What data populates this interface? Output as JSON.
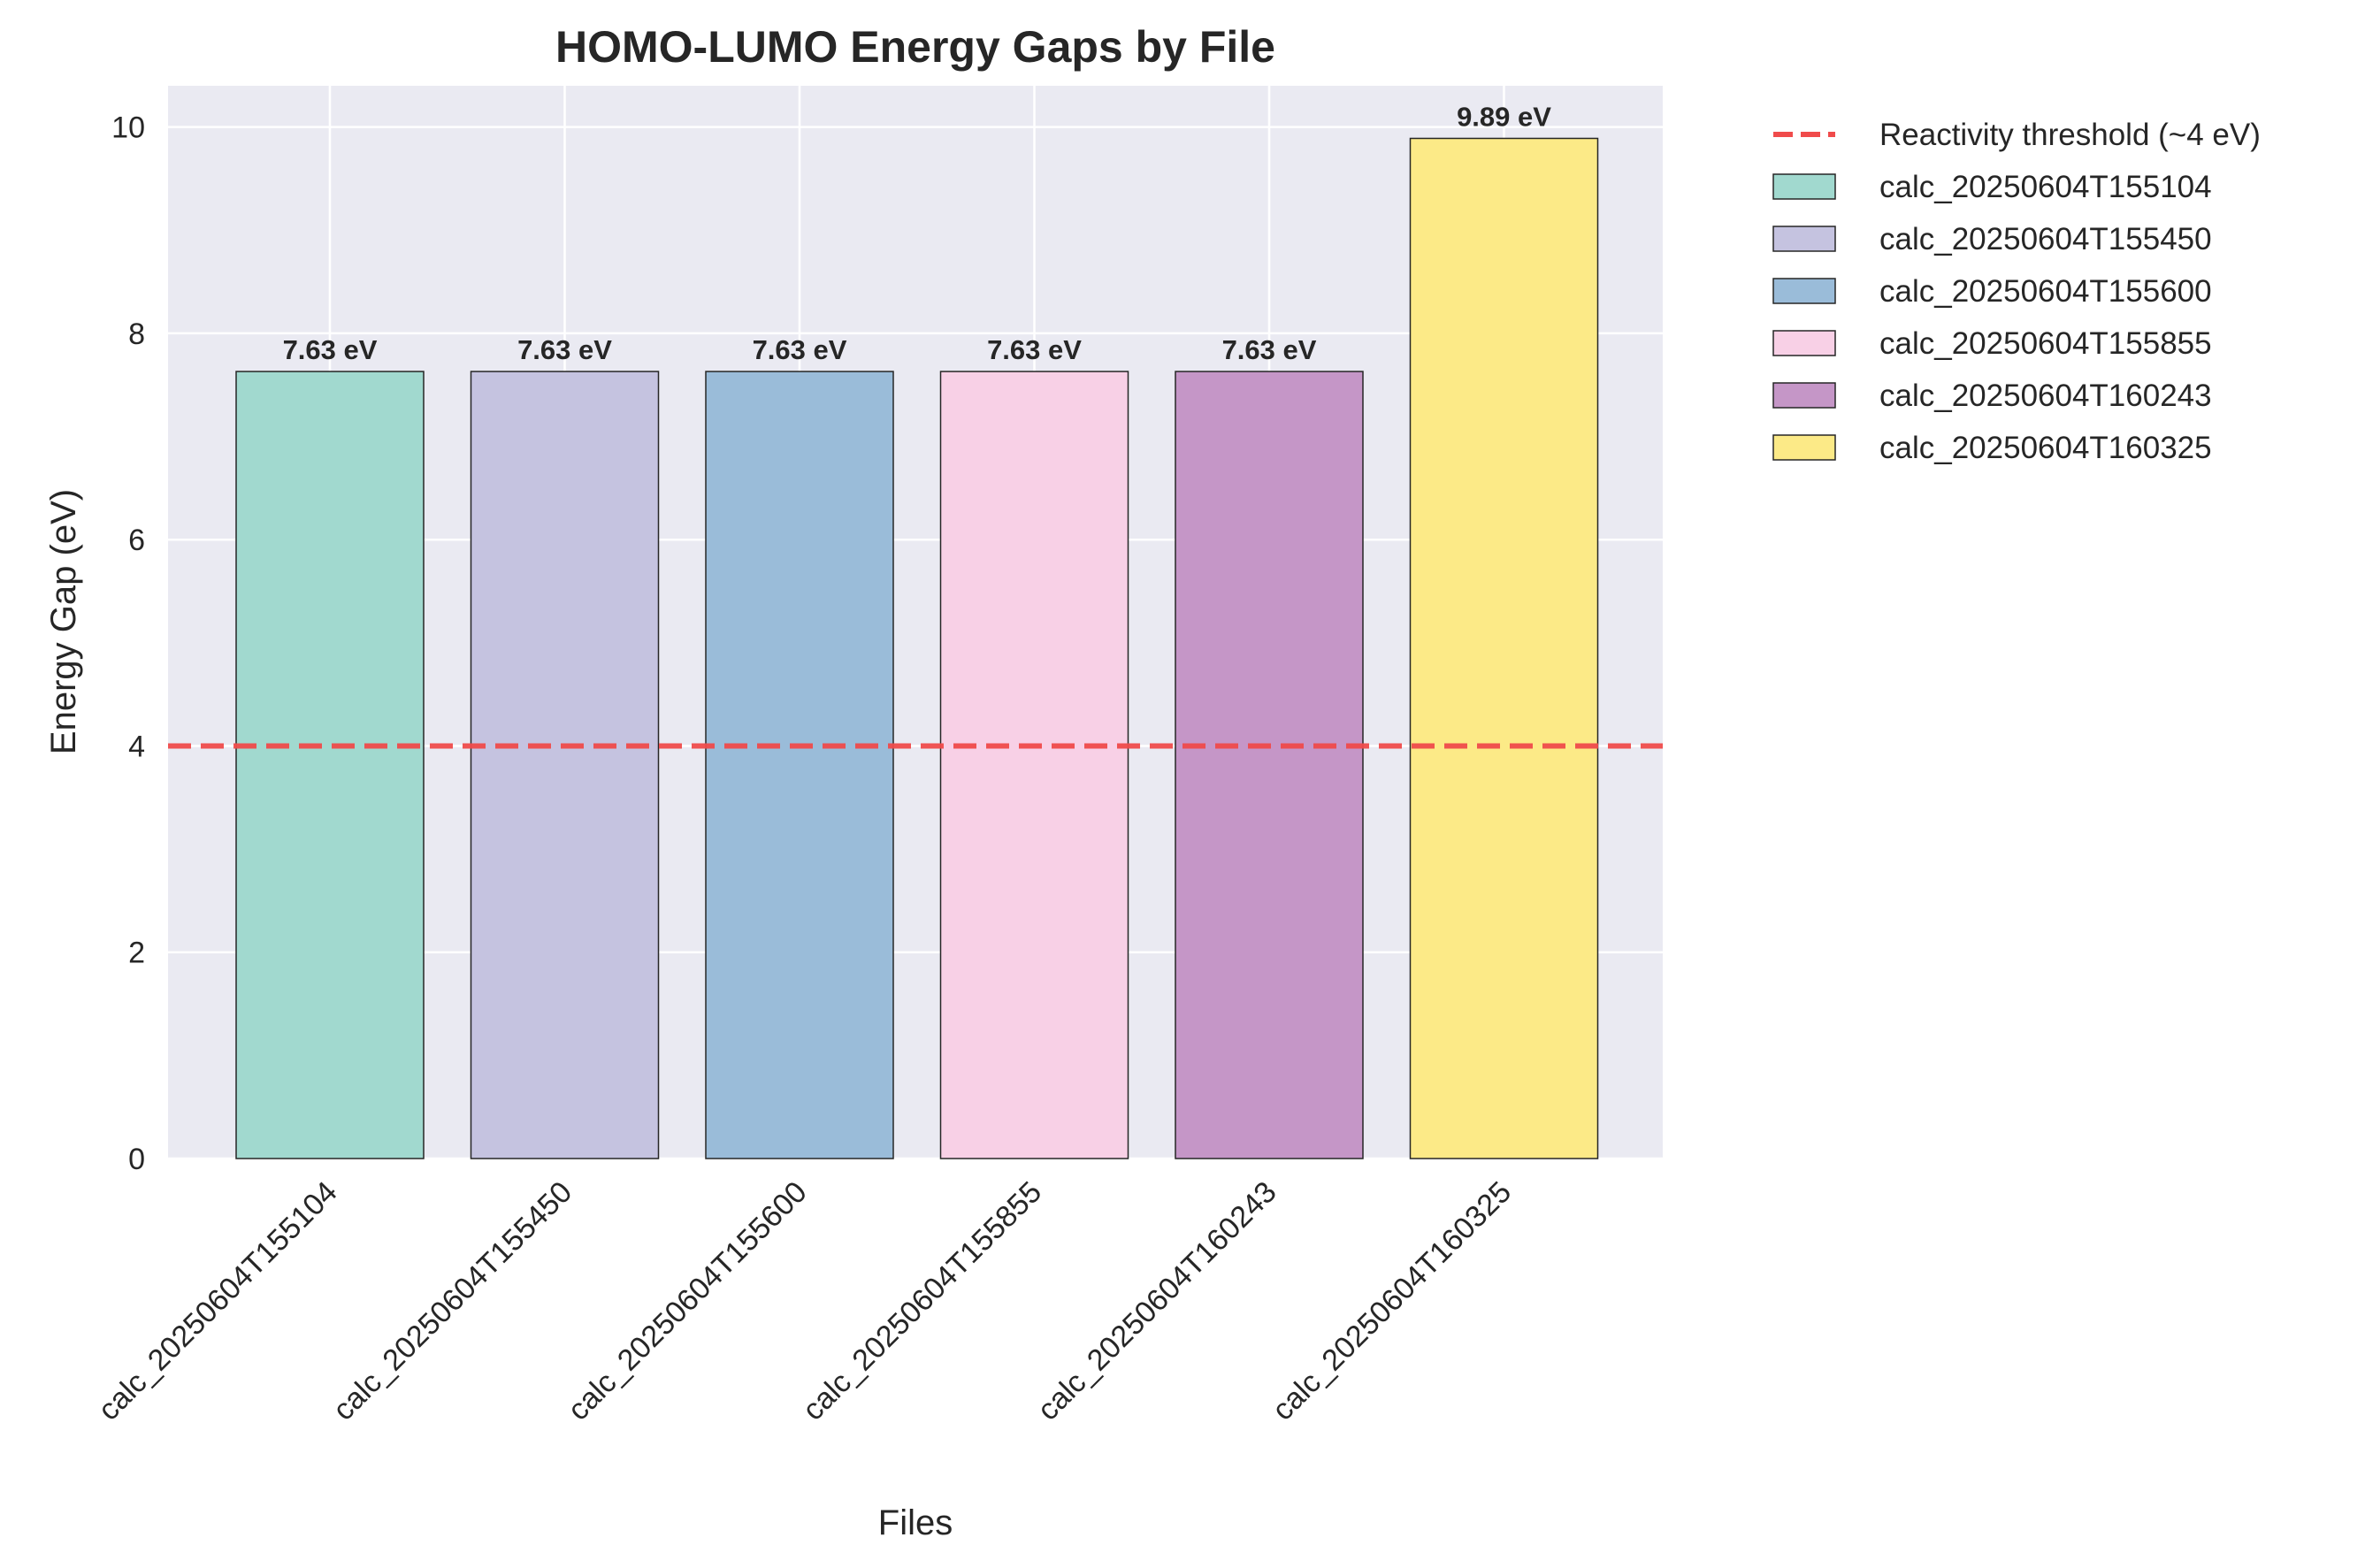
{
  "chart_data": {
    "type": "bar",
    "title": "HOMO-LUMO Energy Gaps by File",
    "xlabel": "Files",
    "ylabel": "Energy Gap (eV)",
    "ylim": [
      0,
      10.4
    ],
    "yticks": [
      0,
      2,
      4,
      6,
      8,
      10
    ],
    "grid": true,
    "legend_position": "outside-right",
    "categories": [
      "calc_20250604T155104",
      "calc_20250604T155450",
      "calc_20250604T155600",
      "calc_20250604T155855",
      "calc_20250604T160243",
      "calc_20250604T160325"
    ],
    "values": [
      7.63,
      7.63,
      7.63,
      7.63,
      7.63,
      9.89
    ],
    "data_labels": [
      "7.63 eV",
      "7.63 eV",
      "7.63 eV",
      "7.63 eV",
      "7.63 eV",
      "9.89 eV"
    ],
    "bar_colors": [
      "#a1d9cf",
      "#c5c3e0",
      "#9abcd9",
      "#f8d0e6",
      "#c596c7",
      "#fcea87"
    ],
    "threshold": {
      "value": 4,
      "label": "Reactivity threshold (~4 eV)",
      "color": "#f04b4b",
      "style": "dashed"
    },
    "plot_background": "#eaeaf2"
  }
}
